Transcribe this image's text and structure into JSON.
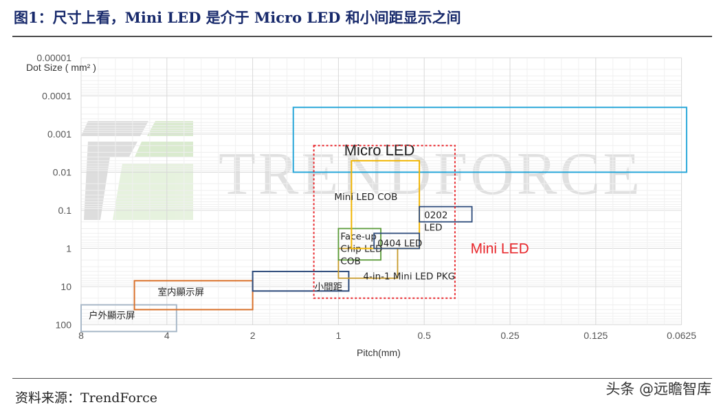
{
  "title": "图1：尺寸上看，Mini LED 是介于 Micro LED 和小间距显示之间",
  "source": "资料来源：TrendForce",
  "credit": "头条 @远瞻智库",
  "watermark": "TRENDFORCE",
  "colors": {
    "title": "#17296b",
    "micro": "#29a7d9",
    "mini_outline": "#e8262b",
    "cob": "#f0b400",
    "box_0202": "#2c4a7a",
    "faceup": "#5b9b3a",
    "box_0404": "#2c4a7a",
    "pkg": "#c79a2a",
    "fine_pitch": "#2c4a7a",
    "indoor": "#d8702a",
    "outdoor": "#a8b8c8"
  },
  "chart_data": {
    "type": "region_map",
    "x_scale": "log2_reversed",
    "y_scale": "log10_reversed",
    "xlabel": "Pitch(mm)",
    "ylabel": "Dot Size ( mm² )",
    "x_ticks": [
      "8",
      "4",
      "2",
      "1",
      "0.5",
      "0.25",
      "0.125",
      "0.0625"
    ],
    "y_ticks": [
      "0.00001",
      "0.0001",
      "0.001",
      "0.01",
      "0.1",
      "1",
      "10",
      "100"
    ],
    "grid": true,
    "regions": [
      {
        "id": "micro",
        "label": "Micro LED",
        "pitch": [
          1.44,
          0.06
        ],
        "dot": [
          0.0002,
          0.01
        ]
      },
      {
        "id": "mini",
        "label": "Mini LED",
        "pitch": [
          1.22,
          0.39
        ],
        "dot": [
          0.002,
          20
        ]
      },
      {
        "id": "cob",
        "label": "Mini LED COB",
        "pitch": [
          0.9,
          0.52
        ],
        "dot": [
          0.005,
          1
        ]
      },
      {
        "id": "box_0202",
        "label": "0202 LED",
        "pitch": [
          0.52,
          0.34
        ],
        "dot": [
          0.08,
          0.2
        ]
      },
      {
        "id": "faceup",
        "label": "Face-up Chip LED COB",
        "pitch": [
          1.0,
          0.71
        ],
        "dot": [
          0.3,
          2
        ]
      },
      {
        "id": "box_0404",
        "label": "0404 LED",
        "pitch": [
          0.75,
          0.52
        ],
        "dot": [
          0.4,
          1
        ]
      },
      {
        "id": "pkg",
        "label": "4-in-1 Mini LED PKG",
        "pitch": [
          1.0,
          0.62
        ],
        "dot": [
          1,
          6
        ]
      },
      {
        "id": "fine_pitch",
        "label": "小間距",
        "pitch": [
          2.0,
          0.92
        ],
        "dot": [
          4,
          13
        ]
      },
      {
        "id": "indoor",
        "label": "室内顯示屏",
        "pitch": [
          5.2,
          2.0
        ],
        "dot": [
          7,
          40
        ]
      },
      {
        "id": "outdoor",
        "label": "户外顯示屏",
        "pitch": [
          8.0,
          3.7
        ],
        "dot": [
          30,
          150
        ]
      }
    ]
  }
}
